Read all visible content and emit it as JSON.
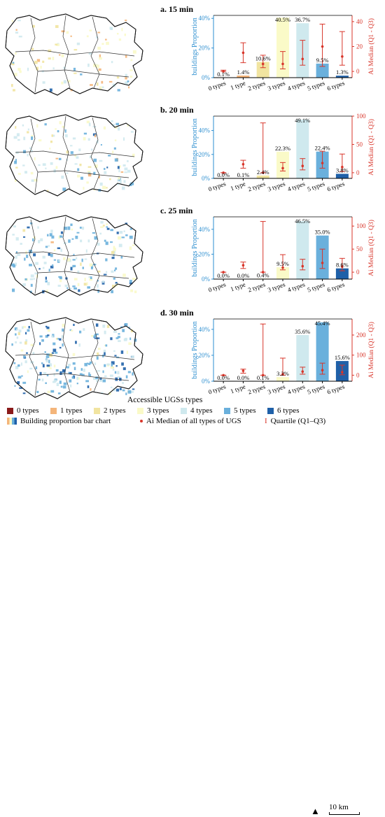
{
  "colors": {
    "accent_blue": "#2e8fd0",
    "accent_red": "#d8352a",
    "type_colors": [
      "#8a1a1a",
      "#f4b57a",
      "#f1e4a0",
      "#fafac8",
      "#cfe9ee",
      "#6ab0dc",
      "#1f60a8"
    ]
  },
  "map_icon": "district-map-icon",
  "chart_data": [
    {
      "type": "bar",
      "title": "a. 15 min",
      "categories": [
        "0 types",
        "1 type",
        "2 types",
        "3 types",
        "4 types",
        "5 types",
        "6 types"
      ],
      "values": [
        0.1,
        1.4,
        10.6,
        40.5,
        36.7,
        9.5,
        1.3
      ],
      "value_labels": [
        "0.1%",
        "1.4%",
        "10.6%",
        "40.5%",
        "36.7%",
        "9.5%",
        "1.3%"
      ],
      "ylabel": "buildings Proportion",
      "ylim": [
        0,
        42
      ],
      "yticks": [
        "0%",
        "20%",
        "40%"
      ],
      "ytick_values": [
        0,
        20,
        40
      ],
      "y2label": "Ai Median (Q1 - Q3)",
      "y2lim": [
        -5,
        45
      ],
      "y2ticks": [
        "0",
        "20",
        "40"
      ],
      "y2tick_values": [
        0,
        20,
        40
      ],
      "median": [
        0,
        15,
        6,
        6,
        10,
        20,
        12
      ],
      "q1": [
        0,
        7,
        3,
        2,
        5,
        4,
        5
      ],
      "q3": [
        1,
        23,
        13,
        16,
        25,
        38,
        32
      ]
    },
    {
      "type": "bar",
      "title": "b. 20 min",
      "categories": [
        "0 types",
        "1 type",
        "2 types",
        "3 types",
        "4 types",
        "5 types",
        "6 types"
      ],
      "values": [
        0.0,
        0.1,
        2.4,
        22.3,
        49.1,
        22.4,
        3.8
      ],
      "value_labels": [
        "0.0%",
        "0.1%",
        "2.4%",
        "22.3%",
        "49.1%",
        "22.4%",
        "3.8%"
      ],
      "ylabel": "buildings Proportion",
      "ylim": [
        0,
        52
      ],
      "yticks": [
        "0%",
        "20%",
        "40%"
      ],
      "ytick_values": [
        0,
        20,
        40
      ],
      "y2label": "Ai Median (Q1 - Q3)",
      "y2lim": [
        -10,
        100
      ],
      "y2ticks": [
        "0",
        "50",
        "100"
      ],
      "y2tick_values": [
        0,
        50,
        100
      ],
      "median": [
        0,
        15,
        0,
        8,
        12,
        17,
        10
      ],
      "q1": [
        0,
        8,
        0,
        3,
        5,
        8,
        2
      ],
      "q3": [
        0,
        22,
        88,
        18,
        25,
        38,
        33
      ]
    },
    {
      "type": "bar",
      "title": "c. 25 min",
      "categories": [
        "0 types",
        "1 type",
        "2 types",
        "3 types",
        "4 types",
        "5 types",
        "6 types"
      ],
      "values": [
        0.0,
        0.0,
        0.4,
        9.5,
        46.5,
        35.0,
        8.6
      ],
      "value_labels": [
        "0.0%",
        "0.0%",
        "0.4%",
        "9.5%",
        "46.5%",
        "35.0%",
        "8.6%"
      ],
      "ylabel": "buildings Proportion",
      "ylim": [
        0,
        50
      ],
      "yticks": [
        "0%",
        "20%",
        "40%"
      ],
      "ytick_values": [
        0,
        20,
        40
      ],
      "y2label": "Ai Median (Q1 - Q3)",
      "y2lim": [
        -15,
        120
      ],
      "y2ticks": [
        "0",
        "50",
        "100"
      ],
      "y2tick_values": [
        0,
        50,
        100
      ],
      "median": [
        0,
        15,
        0,
        10,
        13,
        20,
        12
      ],
      "q1": [
        0,
        8,
        0,
        5,
        5,
        8,
        3
      ],
      "q3": [
        0,
        22,
        110,
        38,
        28,
        50,
        30
      ]
    },
    {
      "type": "bar",
      "title": "d. 30 min",
      "categories": [
        "0 types",
        "1 type",
        "2 types",
        "3 types",
        "4 types",
        "5 types",
        "6 types"
      ],
      "values": [
        0.0,
        0.0,
        0.1,
        3.2,
        35.6,
        45.4,
        15.6
      ],
      "value_labels": [
        "0.0%",
        "0.0%",
        "0.1%",
        "3.2%",
        "35.6%",
        "45.4%",
        "15.6%"
      ],
      "ylabel": "buildings Proportion",
      "ylim": [
        0,
        48
      ],
      "yticks": [
        "0%",
        "20%",
        "40%"
      ],
      "ytick_values": [
        0,
        20,
        40
      ],
      "y2label": "Ai Median (Q1 - Q3)",
      "y2lim": [
        -30,
        280
      ],
      "y2ticks": [
        "0",
        "100",
        "200"
      ],
      "y2tick_values": [
        0,
        100,
        200
      ],
      "median": [
        0,
        22,
        0,
        5,
        18,
        25,
        15
      ],
      "q1": [
        0,
        10,
        0,
        0,
        5,
        5,
        2
      ],
      "q3": [
        0,
        30,
        255,
        85,
        40,
        60,
        50
      ]
    }
  ],
  "legend": {
    "title": "Accessible UGSs types",
    "items": [
      "0 types",
      "1 types",
      "2 types",
      "3 types",
      "4 types",
      "5 types",
      "6 types"
    ],
    "bar_label": "Building proportion bar chart",
    "median_label": "Ai Median of all types of UGS",
    "quartile_label": "Quartile (Q1–Q3)",
    "north_label": "N",
    "scale_label": "10 km"
  }
}
